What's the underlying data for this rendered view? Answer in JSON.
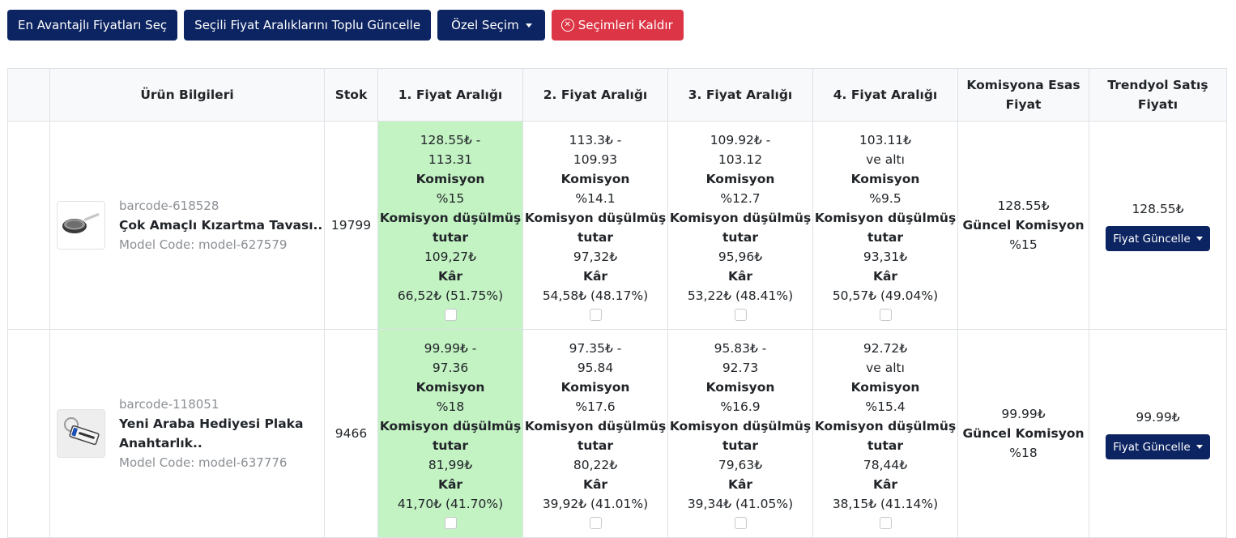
{
  "toolbar": {
    "best_prices": "En Avantajlı Fiyatları Seç",
    "bulk_update": "Seçili Fiyat Aralıklarını Toplu Güncelle",
    "custom_select": "Özel Seçim",
    "clear_selection": "Seçimleri Kaldır"
  },
  "table": {
    "headers": {
      "product": "Ürün Bilgileri",
      "stock": "Stok",
      "range1": "1. Fiyat Aralığı",
      "range2": "2. Fiyat Aralığı",
      "range3": "3. Fiyat Aralığı",
      "range4": "4. Fiyat Aralığı",
      "commission_base": "Komisyona Esas Fiyat",
      "sale_price": "Trendyol Satış Fiyatı"
    },
    "labels": {
      "commission": "Komisyon",
      "net_amount": "Komisyon düşülmüş tutar",
      "profit": "Kâr",
      "current_commission": "Güncel Komisyon",
      "update_button": "Fiyat Güncelle"
    },
    "rows": [
      {
        "barcode": "barcode-618528",
        "name": "Çok Amaçlı Kızartma Tavası..",
        "model": "Model Code: model-627579",
        "thumb_icon": "frying-pan-icon",
        "stock": "19799",
        "ranges": [
          {
            "line1": "128.55₺ -",
            "line2": "113.31",
            "commission": "%15",
            "net": "109,27₺",
            "profit": "66,52₺ (51.75%)"
          },
          {
            "line1": "113.3₺ -",
            "line2": "109.93",
            "commission": "%14.1",
            "net": "97,32₺",
            "profit": "54,58₺ (48.17%)"
          },
          {
            "line1": "109.92₺ -",
            "line2": "103.12",
            "commission": "%12.7",
            "net": "95,96₺",
            "profit": "53,22₺ (48.41%)"
          },
          {
            "line1": "103.11₺",
            "line2": "ve altı",
            "commission": "%9.5",
            "net": "93,31₺",
            "profit": "50,57₺ (49.04%)"
          }
        ],
        "commission_base": "128.55₺",
        "current_commission": "%15",
        "sale_price": "128.55₺"
      },
      {
        "barcode": "barcode-118051",
        "name": "Yeni Araba Hediyesi Plaka Anahtarlık..",
        "model": "Model Code: model-637776",
        "thumb_icon": "plate-keychain-icon",
        "stock": "9466",
        "ranges": [
          {
            "line1": "99.99₺ -",
            "line2": "97.36",
            "commission": "%18",
            "net": "81,99₺",
            "profit": "41,70₺ (41.70%)"
          },
          {
            "line1": "97.35₺ -",
            "line2": "95.84",
            "commission": "%17.6",
            "net": "80,22₺",
            "profit": "39,92₺ (41.01%)"
          },
          {
            "line1": "95.83₺ -",
            "line2": "92.73",
            "commission": "%16.9",
            "net": "79,63₺",
            "profit": "39,34₺ (41.05%)"
          },
          {
            "line1": "92.72₺",
            "line2": "ve altı",
            "commission": "%15.4",
            "net": "78,44₺",
            "profit": "38,15₺ (41.14%)"
          }
        ],
        "commission_base": "99.99₺",
        "current_commission": "%18",
        "sale_price": "99.99₺"
      }
    ]
  },
  "colors": {
    "navy": "#0c2461",
    "danger": "#dc3545",
    "best_range": "#c3f2c3",
    "header_bg": "#f8f9fa"
  }
}
